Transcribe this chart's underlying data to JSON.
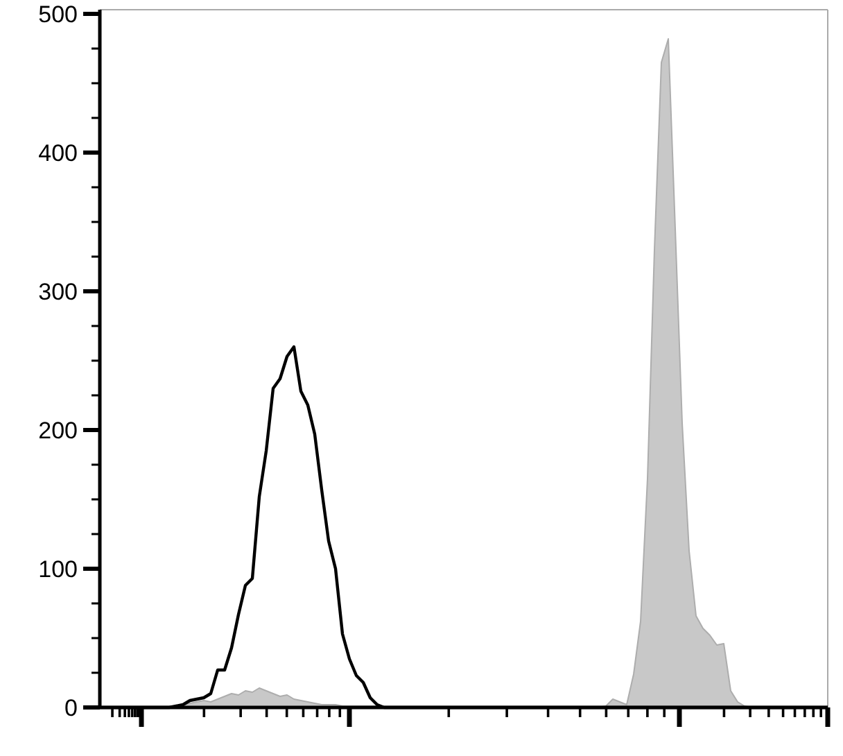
{
  "chart_data": {
    "type": "area",
    "categories": [
      null,
      null,
      null,
      null,
      null,
      null,
      null,
      null,
      null,
      null,
      null,
      null,
      null,
      null,
      null,
      null,
      null,
      null,
      null,
      null,
      null,
      null,
      null,
      null,
      null,
      null,
      null,
      null,
      null,
      null,
      null,
      null,
      null,
      null,
      null,
      null,
      null,
      null,
      null,
      null,
      null,
      null,
      null,
      null,
      null,
      null,
      null,
      null,
      null,
      null,
      null,
      null,
      null,
      null,
      null,
      null,
      null,
      null,
      null,
      null,
      null,
      null,
      null,
      null,
      null,
      null,
      null,
      null,
      null,
      null,
      null,
      null,
      null,
      null,
      null,
      null,
      null,
      null,
      null,
      null,
      null,
      null,
      null,
      null,
      null,
      null,
      null,
      null,
      null,
      null,
      null,
      null,
      null,
      null,
      null,
      null,
      null,
      null,
      null,
      null,
      null,
      null,
      null,
      null,
      null,
      null
    ],
    "series": [
      {
        "color": "#c8c8c8",
        "values": [
          0,
          0,
          0,
          0,
          0,
          0,
          0,
          0,
          0,
          0,
          0,
          1,
          2,
          3,
          4,
          5,
          4,
          6,
          8,
          10,
          9,
          12,
          11,
          14,
          12,
          10,
          8,
          9,
          6,
          5,
          4,
          3,
          2,
          2,
          2,
          1,
          1,
          1,
          1,
          1,
          1,
          0,
          0,
          0,
          0,
          0,
          0,
          0,
          0,
          0,
          0,
          0,
          0,
          0,
          0,
          0,
          0,
          0,
          0,
          0,
          0,
          0,
          0,
          0,
          0,
          0,
          0,
          0,
          0,
          0,
          0,
          0,
          0,
          1,
          6,
          4,
          2,
          24,
          62,
          165,
          330,
          465,
          482,
          345,
          205,
          113,
          66,
          57,
          52,
          45,
          46,
          12,
          4,
          1,
          0,
          0,
          0,
          0,
          0,
          0,
          0,
          0,
          0,
          0,
          0,
          0
        ]
      },
      {
        "type": "line",
        "color": "#000000",
        "values": [
          0,
          0,
          0,
          0,
          0,
          0,
          0,
          0,
          0,
          0,
          0,
          1,
          2,
          5,
          6,
          7,
          10,
          27,
          27,
          43,
          67,
          88,
          93,
          152,
          185,
          230,
          237,
          253,
          260,
          228,
          218,
          197,
          157,
          120,
          100,
          53,
          35,
          23,
          18,
          7,
          2,
          0,
          0,
          0,
          0,
          0,
          0,
          0,
          0,
          0,
          0,
          0,
          0,
          0,
          0,
          0,
          0,
          0,
          0,
          0,
          0,
          0,
          0,
          0,
          0,
          0,
          0,
          0,
          0,
          0,
          0,
          0,
          0,
          0,
          0,
          0,
          0,
          0,
          0,
          0,
          0,
          0,
          0,
          0,
          0,
          0,
          0,
          0,
          0,
          0,
          0,
          0,
          0,
          0,
          0,
          0,
          0,
          0,
          0,
          0,
          0,
          0,
          0,
          0,
          0,
          0
        ]
      }
    ],
    "ylim": [
      0,
      500
    ],
    "yticks": [
      0,
      {
        "value": 25,
        "label": null
      },
      {
        "value": 50,
        "label": null
      },
      {
        "value": 75,
        "label": null
      },
      100,
      {
        "value": 125,
        "label": null
      },
      {
        "value": 150,
        "label": null
      },
      {
        "value": 175,
        "label": null
      },
      200,
      {
        "value": 225,
        "label": null
      },
      {
        "value": 250,
        "label": null
      },
      {
        "value": 275,
        "label": null
      },
      300,
      {
        "value": 325,
        "label": null
      },
      {
        "value": 350,
        "label": null
      },
      {
        "value": 375,
        "label": null
      },
      400,
      {
        "value": 425,
        "label": null
      },
      {
        "value": 450,
        "label": null
      },
      {
        "value": 475,
        "label": null
      },
      500
    ],
    "tick_labels": "y"
  }
}
